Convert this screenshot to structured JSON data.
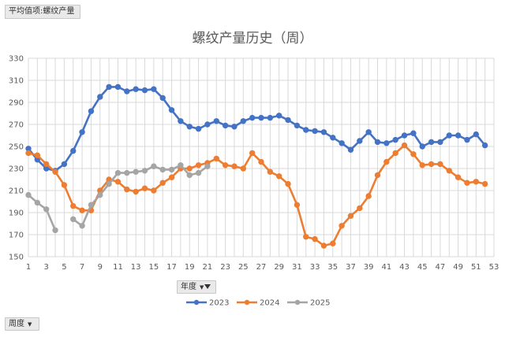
{
  "filters": {
    "value_field": "平均值项:螺纹产量",
    "legend_field": "年度",
    "axis_field": "周度"
  },
  "chart_data": {
    "type": "line",
    "title": "螺纹产量历史（周）",
    "xlabel": "",
    "ylabel": "",
    "xlim": [
      1,
      53
    ],
    "ylim": [
      150,
      330
    ],
    "x_ticks": [
      1,
      3,
      5,
      7,
      9,
      11,
      13,
      15,
      17,
      19,
      21,
      23,
      25,
      27,
      29,
      31,
      33,
      35,
      37,
      39,
      41,
      43,
      45,
      47,
      49,
      51,
      53
    ],
    "y_ticks": [
      150,
      170,
      190,
      210,
      230,
      250,
      270,
      290,
      310,
      330
    ],
    "grid": "vertical and horizontal",
    "legend_placement": "bottom",
    "series": [
      {
        "name": "2023",
        "color": "#4472C4",
        "x": [
          1,
          2,
          3,
          4,
          5,
          6,
          7,
          8,
          9,
          10,
          11,
          12,
          13,
          14,
          15,
          16,
          17,
          18,
          19,
          20,
          21,
          22,
          23,
          24,
          25,
          26,
          27,
          28,
          29,
          30,
          31,
          32,
          33,
          34,
          35,
          36,
          37,
          38,
          39,
          40,
          41,
          42,
          43,
          44,
          45,
          46,
          47,
          48,
          49,
          50,
          51,
          52
        ],
        "values": [
          248,
          238,
          230,
          228,
          234,
          246,
          263,
          282,
          295,
          304,
          304,
          300,
          302,
          301,
          302,
          294,
          283,
          273,
          268,
          266,
          270,
          273,
          269,
          268,
          273,
          276,
          276,
          276,
          278,
          274,
          269,
          265,
          264,
          263,
          258,
          253,
          247,
          255,
          263,
          254,
          253,
          256,
          260,
          262,
          250,
          254,
          254,
          260,
          260,
          256,
          261,
          251
        ]
      },
      {
        "name": "2024",
        "color": "#ED7D31",
        "x": [
          1,
          2,
          3,
          4,
          5,
          6,
          7,
          8,
          9,
          10,
          11,
          12,
          13,
          14,
          15,
          16,
          17,
          18,
          19,
          20,
          21,
          22,
          23,
          24,
          25,
          26,
          27,
          28,
          29,
          30,
          31,
          32,
          33,
          34,
          35,
          36,
          37,
          38,
          39,
          40,
          41,
          42,
          43,
          44,
          45,
          46,
          47,
          48,
          49,
          50,
          51,
          52
        ],
        "values": [
          244,
          242,
          234,
          227,
          215,
          196,
          192,
          192,
          210,
          220,
          218,
          211,
          209,
          212,
          210,
          217,
          222,
          230,
          230,
          233,
          235,
          239,
          233,
          232,
          230,
          244,
          236,
          227,
          223,
          216,
          197,
          168,
          166,
          160,
          162,
          178,
          187,
          194,
          205,
          224,
          236,
          244,
          251,
          243,
          233,
          234,
          234,
          228,
          222,
          217,
          218,
          216
        ]
      },
      {
        "name": "2025",
        "color": "#A5A5A5",
        "x": [
          1,
          2,
          3,
          4,
          6,
          7,
          8,
          9,
          10,
          11,
          12,
          13,
          14,
          15,
          16,
          17,
          18,
          19,
          20,
          21
        ],
        "values": [
          206,
          199,
          193,
          174,
          184,
          178,
          197,
          206,
          216,
          226,
          226,
          227,
          228,
          232,
          229,
          229,
          233,
          224,
          226,
          232
        ],
        "segments": [
          [
            0,
            3
          ],
          [
            4,
            19
          ]
        ]
      }
    ]
  }
}
